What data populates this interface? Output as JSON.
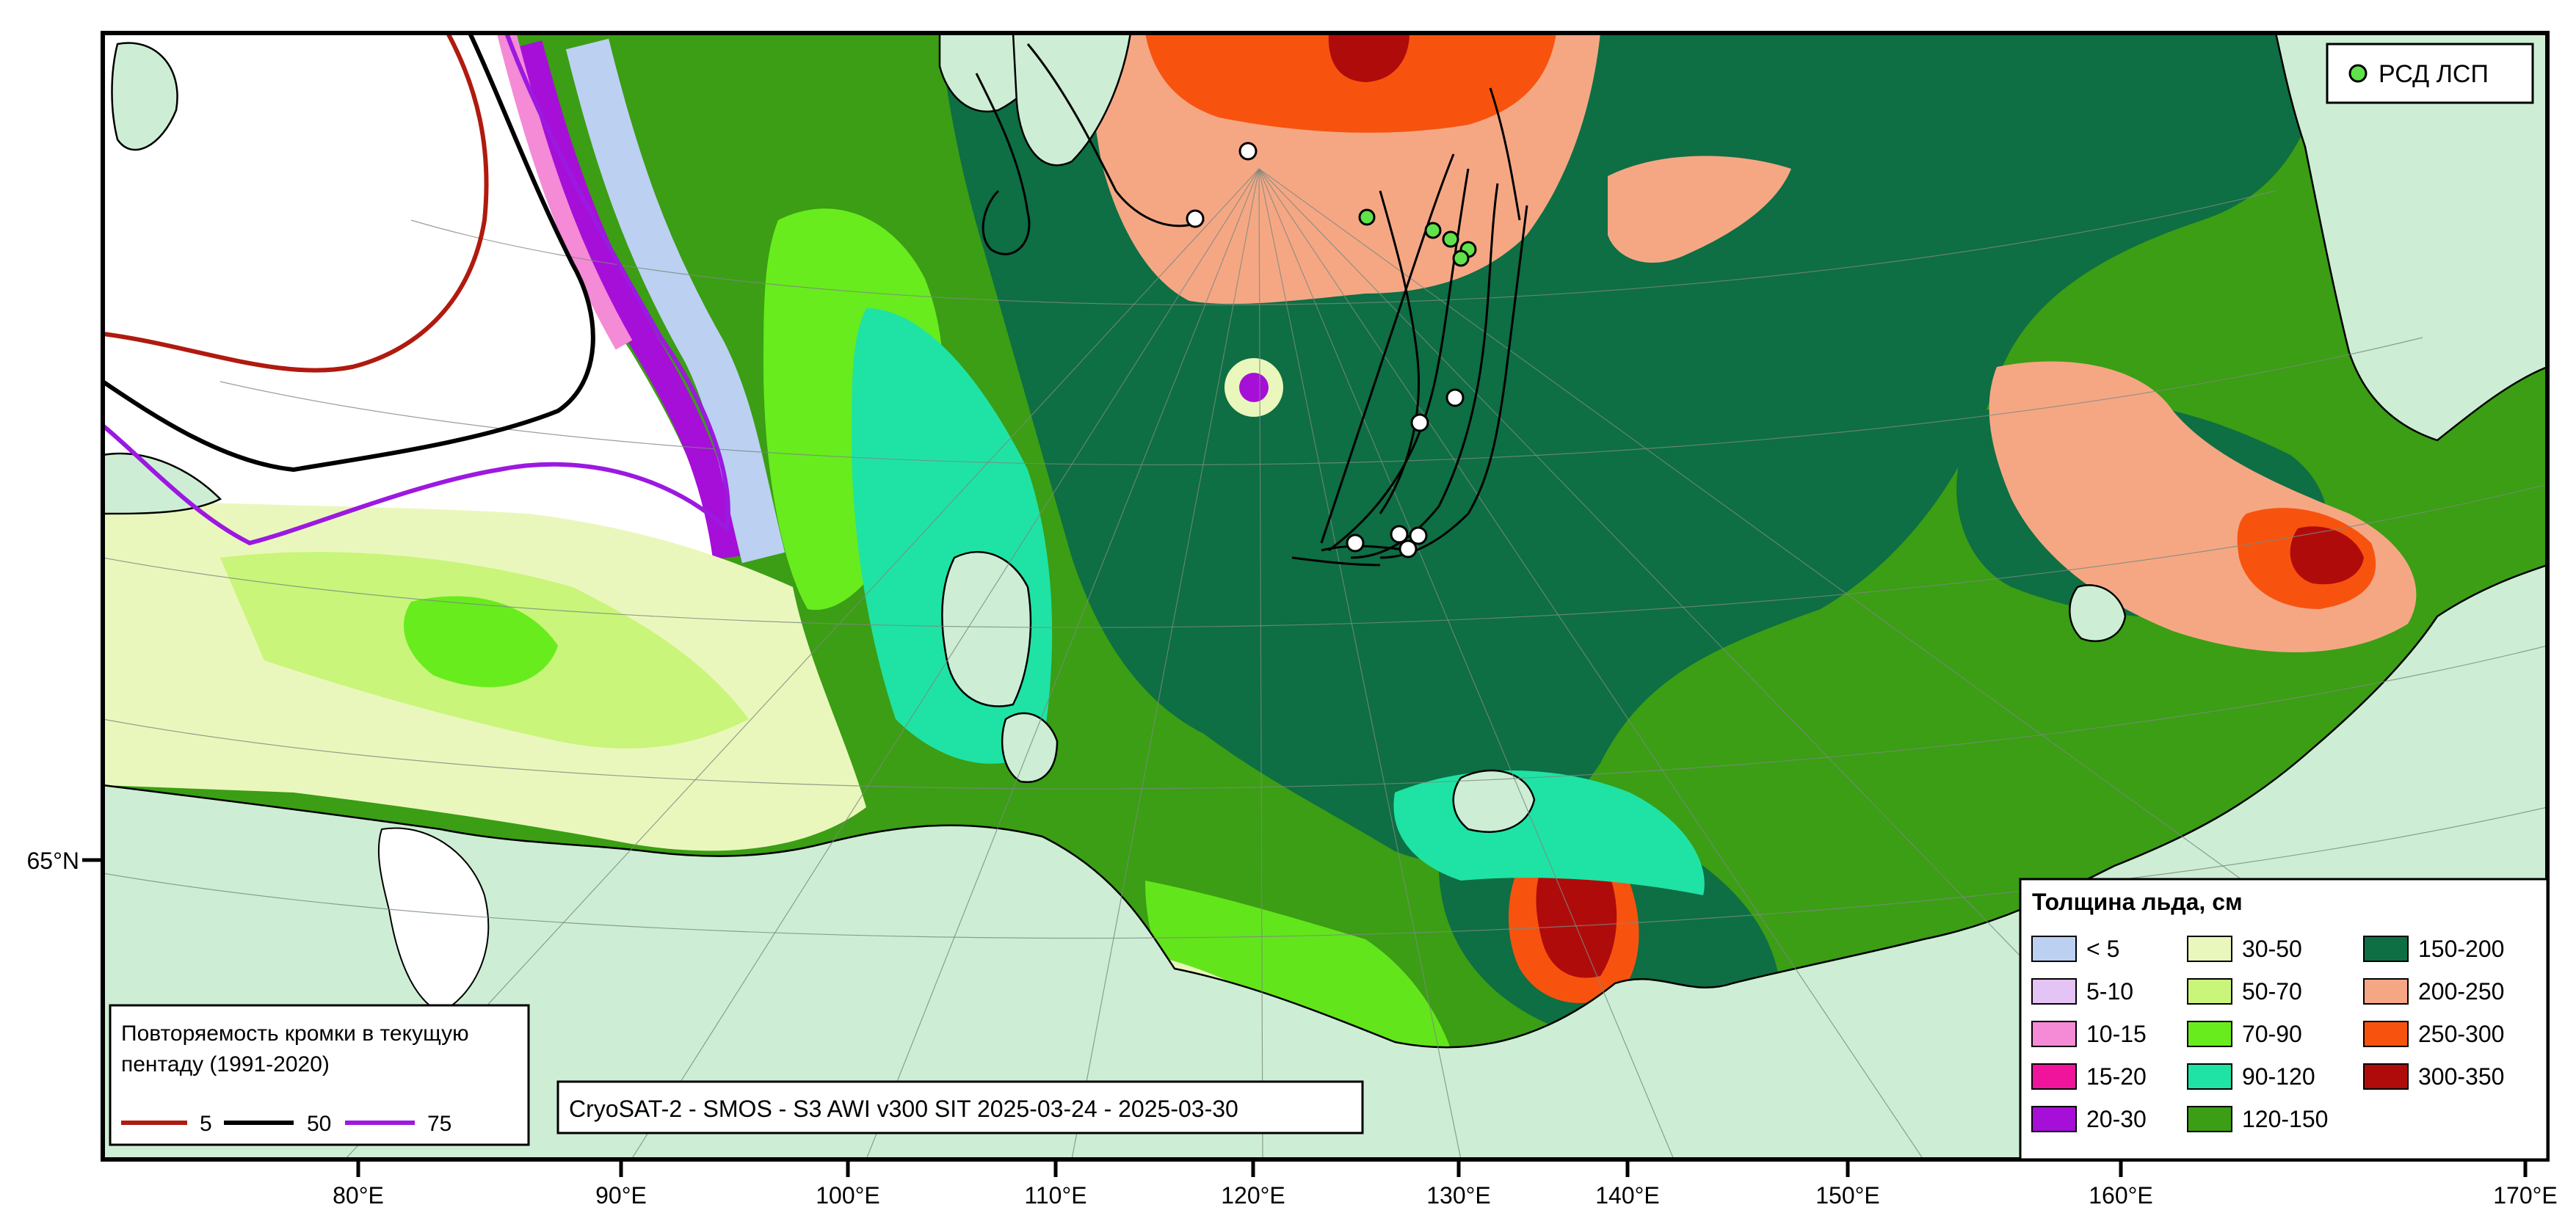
{
  "colors": {
    "land": "#cdeed4",
    "coast": "#000000",
    "frame": "#000000",
    "open_water": "#ffffff",
    "track": "#000000",
    "station_green": "#5fe24a",
    "station_white": "#ffffff"
  },
  "thickness_legend": {
    "title": "Толщина льда, см",
    "classes": [
      {
        "label": "< 5",
        "color": "#bcd0f2"
      },
      {
        "label": "5-10",
        "color": "#e4c4f4"
      },
      {
        "label": "10-15",
        "color": "#f58ad6"
      },
      {
        "label": "15-20",
        "color": "#f0139c"
      },
      {
        "label": "20-30",
        "color": "#a60fd8"
      },
      {
        "label": "30-50",
        "color": "#eaf7bc"
      },
      {
        "label": "50-70",
        "color": "#c9f57a"
      },
      {
        "label": "70-90",
        "color": "#68ec1d"
      },
      {
        "label": "90-120",
        "color": "#1fe3a4"
      },
      {
        "label": "120-150",
        "color": "#3b9e14"
      },
      {
        "label": "150-200",
        "color": "#0e6e44"
      },
      {
        "label": "200-250",
        "color": "#f5a784"
      },
      {
        "label": "250-300",
        "color": "#f7530f"
      },
      {
        "label": "300-350",
        "color": "#b00b0b"
      }
    ]
  },
  "recurrence_legend": {
    "title_line1": "Повторяемость кромки в текущую",
    "title_line2": "пентаду (1991-2020)",
    "entries": [
      {
        "label": "5",
        "color": "#b01a0f"
      },
      {
        "label": "50",
        "color": "#000000"
      },
      {
        "label": "75",
        "color": "#9b19e0"
      }
    ]
  },
  "stations_legend": {
    "label": "РСД ЛСП",
    "color": "#5fe24a"
  },
  "product_label": "CryoSAT-2 - SMOS - S3 AWI v300 SIT 2025-03-24 - 2025-03-30",
  "axes": {
    "longitude_ticks": [
      "80°E",
      "90°E",
      "100°E",
      "110°E",
      "120°E",
      "130°E",
      "140°E",
      "150°E",
      "160°E",
      "170°E"
    ],
    "latitude_ticks": [
      "65°N"
    ]
  }
}
